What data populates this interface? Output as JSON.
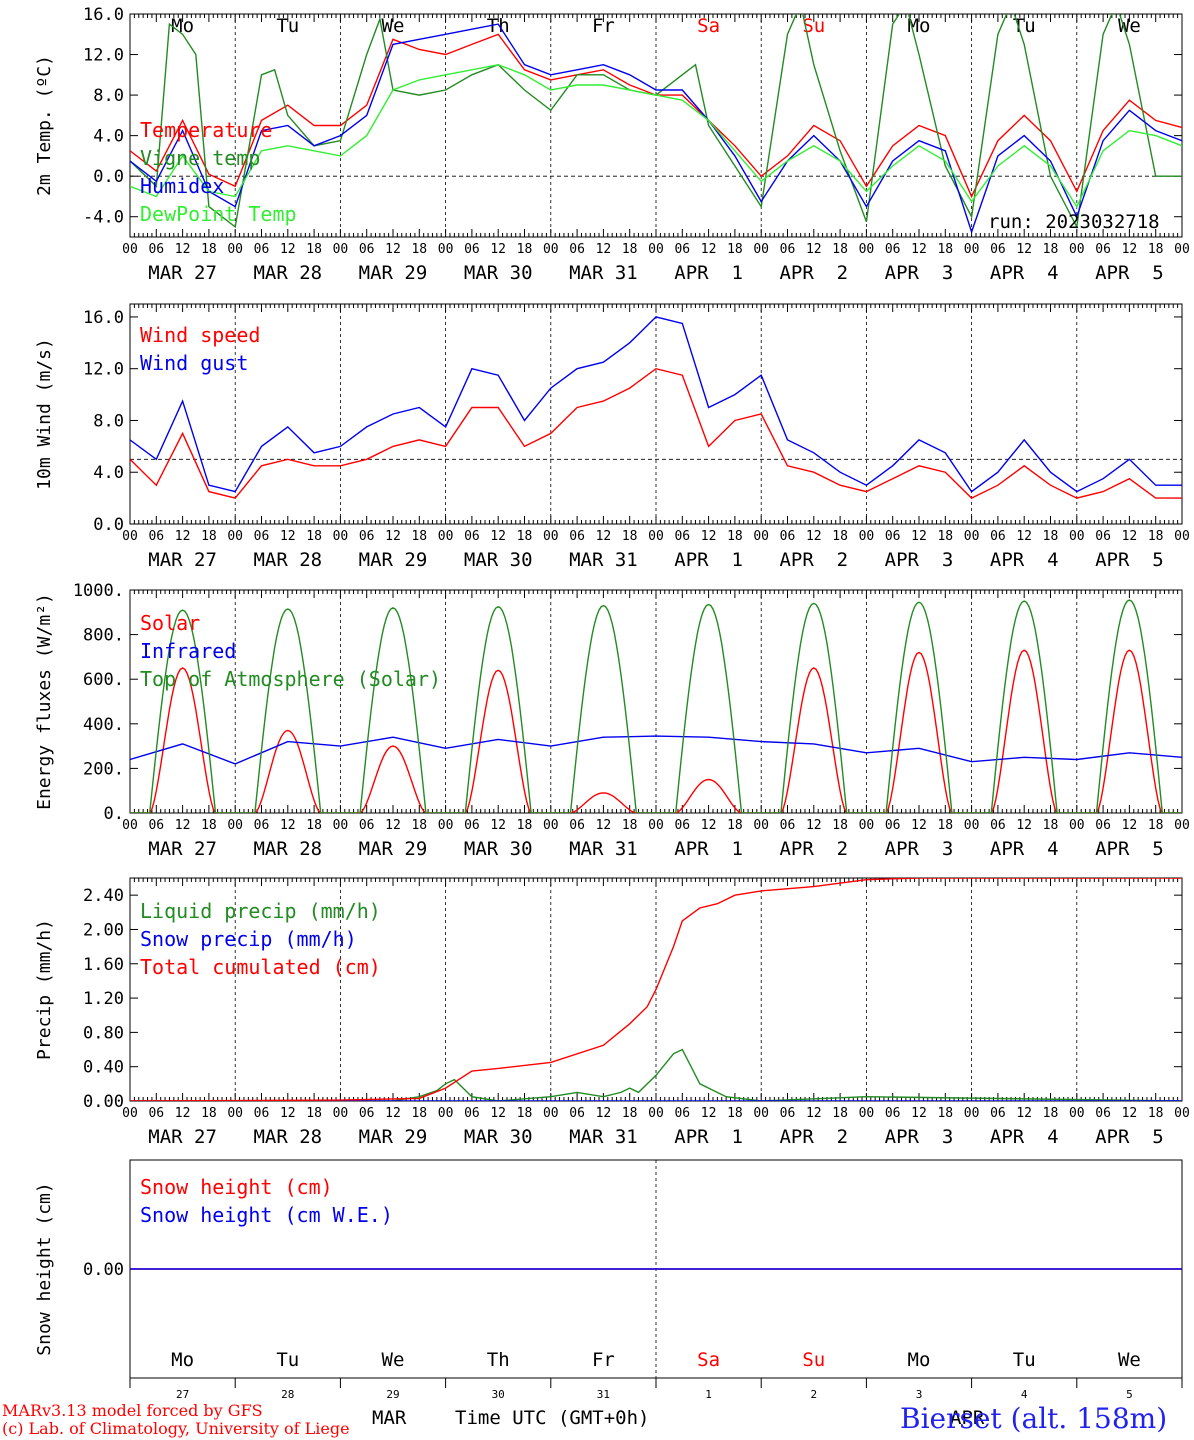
{
  "run_label": "run: 2023032718",
  "station_label": "Bierset (alt. 158m)",
  "credits": [
    "MARv3.13 model forced by GFS",
    "(c) Lab. of Climatology, University of Liege"
  ],
  "time_axis": {
    "hour_ticks": [
      "00",
      "06",
      "12",
      "18"
    ],
    "final_tick": "00",
    "day_labels": [
      "MAR 27",
      "MAR 28",
      "MAR 29",
      "MAR 30",
      "MAR 31",
      "APR  1",
      "APR  2",
      "APR  3",
      "APR  4",
      "APR  5"
    ],
    "weekdays": [
      "Mo",
      "Tu",
      "We",
      "Th",
      "Fr",
      "Sa",
      "Su",
      "Mo",
      "Tu",
      "We"
    ],
    "weekday_colors": [
      "#000000",
      "#000000",
      "#000000",
      "#000000",
      "#000000",
      "#ff0000",
      "#ff0000",
      "#000000",
      "#000000",
      "#000000"
    ],
    "bottom_day_numbers": [
      "27",
      "28",
      "29",
      "30",
      "31",
      "1",
      "2",
      "3",
      "4",
      "5"
    ],
    "bottom_title": "Time UTC (GMT+0h)",
    "bottom_month_labels": [
      "MAR",
      "APR"
    ]
  },
  "chart_data": [
    {
      "type": "line",
      "id": "temperature",
      "ylabel": "2m Temp. (ºC)",
      "ylim": [
        -6,
        16
      ],
      "yticks": [
        "16.0",
        "12.0",
        "8.0",
        "4.0",
        "0.0",
        "-4.0"
      ],
      "reference_line": 0,
      "x_unit": "hours since MAR 27 00 UTC",
      "series": [
        {
          "name": "Temperature",
          "color": "#ff0000",
          "x": [
            0,
            6,
            12,
            18,
            24,
            30,
            36,
            42,
            48,
            54,
            60,
            66,
            72,
            78,
            84,
            90,
            96,
            102,
            108,
            114,
            120,
            126,
            132,
            138,
            144,
            150,
            156,
            162,
            168,
            174,
            180,
            186,
            192,
            198,
            204,
            210,
            216,
            222,
            228,
            234,
            240
          ],
          "y": [
            2.5,
            0.5,
            5.5,
            0.2,
            -1.0,
            5.5,
            7.0,
            5.0,
            5.0,
            7.0,
            13.5,
            12.5,
            12.0,
            13.0,
            14.0,
            10.5,
            9.5,
            10.0,
            10.5,
            9.0,
            8.0,
            8.0,
            5.5,
            3.0,
            0.0,
            2.0,
            5.0,
            3.5,
            -1.0,
            3.0,
            5.0,
            4.0,
            -2.0,
            3.5,
            6.0,
            3.5,
            -1.5,
            4.5,
            7.5,
            5.5,
            4.8
          ]
        },
        {
          "name": "Vigne temp",
          "color": "#228b22",
          "x": [
            0,
            6,
            9,
            12,
            15,
            18,
            24,
            30,
            33,
            36,
            42,
            48,
            54,
            57,
            60,
            66,
            72,
            78,
            84,
            90,
            96,
            102,
            108,
            114,
            120,
            126,
            129,
            132,
            138,
            144,
            150,
            153,
            156,
            162,
            168,
            174,
            177,
            180,
            186,
            192,
            198,
            201,
            204,
            210,
            216,
            222,
            225,
            228,
            234,
            240
          ],
          "y": [
            1.5,
            -1.0,
            15.0,
            14.0,
            12.0,
            -3.0,
            -5.0,
            10.0,
            10.5,
            6.0,
            3.0,
            3.5,
            12.0,
            15.5,
            8.5,
            8.0,
            8.5,
            10.0,
            11.0,
            8.5,
            6.5,
            10.0,
            10.0,
            8.5,
            8.0,
            10.0,
            11.0,
            5.0,
            1.0,
            -3.0,
            14.0,
            17.0,
            11.0,
            2.5,
            -4.5,
            15.0,
            17.0,
            12.0,
            1.0,
            -4.0,
            14.0,
            17.0,
            13.0,
            0.0,
            -5.0,
            14.0,
            17.0,
            13.0,
            0.0,
            0.0
          ]
        },
        {
          "name": "Humidex",
          "color": "#0000ee",
          "x": [
            0,
            6,
            12,
            18,
            24,
            30,
            36,
            42,
            48,
            54,
            60,
            66,
            72,
            78,
            84,
            90,
            96,
            102,
            108,
            114,
            120,
            126,
            132,
            138,
            144,
            150,
            156,
            162,
            168,
            174,
            180,
            186,
            192,
            198,
            204,
            210,
            216,
            222,
            228,
            234,
            240
          ],
          "y": [
            1.5,
            -0.5,
            4.5,
            -1.5,
            -3.0,
            4.5,
            5.0,
            3.0,
            4.0,
            6.0,
            13.0,
            13.5,
            14.0,
            14.5,
            15.0,
            11.0,
            10.0,
            10.5,
            11.0,
            10.0,
            8.5,
            8.5,
            5.5,
            2.0,
            -2.5,
            1.5,
            4.0,
            1.5,
            -3.0,
            1.5,
            3.5,
            2.5,
            -5.5,
            2.0,
            4.0,
            1.5,
            -4.0,
            3.5,
            6.5,
            4.5,
            3.5
          ]
        },
        {
          "name": "DewPoint Temp",
          "color": "#33ee33",
          "x": [
            0,
            6,
            12,
            18,
            24,
            30,
            36,
            42,
            48,
            54,
            60,
            66,
            72,
            78,
            84,
            90,
            96,
            102,
            108,
            114,
            120,
            126,
            132,
            138,
            144,
            150,
            156,
            162,
            168,
            174,
            180,
            186,
            192,
            198,
            204,
            210,
            216,
            222,
            228,
            234,
            240
          ],
          "y": [
            -1.0,
            -2.0,
            2.0,
            -1.5,
            -2.0,
            2.5,
            3.0,
            2.5,
            2.0,
            4.0,
            8.5,
            9.5,
            10.0,
            10.5,
            11.0,
            10.0,
            8.5,
            9.0,
            9.0,
            8.5,
            8.0,
            7.5,
            5.5,
            2.5,
            -0.5,
            1.5,
            3.0,
            1.5,
            -1.5,
            1.0,
            3.0,
            1.5,
            -2.5,
            1.0,
            3.0,
            1.0,
            -3.0,
            2.5,
            4.5,
            4.0,
            3.0
          ]
        }
      ]
    },
    {
      "type": "line",
      "id": "wind",
      "ylabel": "10m Wind (m/s)",
      "ylim": [
        0,
        17
      ],
      "yticks": [
        "16.0",
        "12.0",
        "8.0",
        "4.0",
        "0.0"
      ],
      "reference_line": 5,
      "series": [
        {
          "name": "Wind speed",
          "color": "#ff0000",
          "x": [
            0,
            6,
            12,
            18,
            24,
            30,
            36,
            42,
            48,
            54,
            60,
            66,
            72,
            78,
            84,
            90,
            96,
            102,
            108,
            114,
            120,
            126,
            132,
            138,
            144,
            150,
            156,
            162,
            168,
            174,
            180,
            186,
            192,
            198,
            204,
            210,
            216,
            222,
            228,
            234,
            240
          ],
          "y": [
            5.0,
            3.0,
            7.0,
            2.5,
            2.0,
            4.5,
            5.0,
            4.5,
            4.5,
            5.0,
            6.0,
            6.5,
            6.0,
            9.0,
            9.0,
            6.0,
            7.0,
            9.0,
            9.5,
            10.5,
            12.0,
            11.5,
            6.0,
            8.0,
            8.5,
            4.5,
            4.0,
            3.0,
            2.5,
            3.5,
            4.5,
            4.0,
            2.0,
            3.0,
            4.5,
            3.0,
            2.0,
            2.5,
            3.5,
            2.0,
            2.0
          ]
        },
        {
          "name": "Wind gust",
          "color": "#0000ee",
          "x": [
            0,
            6,
            12,
            18,
            24,
            30,
            36,
            42,
            48,
            54,
            60,
            66,
            72,
            78,
            84,
            90,
            96,
            102,
            108,
            114,
            120,
            126,
            132,
            138,
            144,
            150,
            156,
            162,
            168,
            174,
            180,
            186,
            192,
            198,
            204,
            210,
            216,
            222,
            228,
            234,
            240
          ],
          "y": [
            6.5,
            5.0,
            9.5,
            3.0,
            2.5,
            6.0,
            7.5,
            5.5,
            6.0,
            7.5,
            8.5,
            9.0,
            7.5,
            12.0,
            11.5,
            8.0,
            10.5,
            12.0,
            12.5,
            14.0,
            16.0,
            15.5,
            9.0,
            10.0,
            11.5,
            6.5,
            5.5,
            4.0,
            3.0,
            4.5,
            6.5,
            5.5,
            2.5,
            4.0,
            6.5,
            4.0,
            2.5,
            3.5,
            5.0,
            3.0,
            3.0
          ]
        }
      ]
    },
    {
      "type": "line",
      "id": "energy",
      "ylabel": "Energy fluxes (W/m²)",
      "ylim": [
        0,
        1000
      ],
      "yticks": [
        "1000.",
        "800.",
        "600.",
        "400.",
        "200.",
        "0."
      ],
      "series": [
        {
          "name": "Solar",
          "color": "#ff0000",
          "daily_peaks": [
            650,
            370,
            300,
            640,
            90,
            150,
            650,
            720,
            730,
            730
          ]
        },
        {
          "name": "Infrared",
          "color": "#0000ee",
          "x": [
            0,
            12,
            24,
            36,
            48,
            60,
            72,
            84,
            96,
            108,
            120,
            132,
            144,
            156,
            168,
            180,
            192,
            204,
            216,
            228,
            240
          ],
          "y": [
            240,
            310,
            220,
            320,
            300,
            340,
            290,
            330,
            300,
            340,
            345,
            340,
            320,
            310,
            270,
            290,
            230,
            250,
            240,
            270,
            250
          ]
        },
        {
          "name": "Top of Atmosphere (Solar)",
          "color": "#228b22",
          "daily_peaks": [
            910,
            915,
            920,
            925,
            930,
            935,
            940,
            945,
            950,
            955
          ]
        }
      ]
    },
    {
      "type": "line",
      "id": "precip",
      "ylabel": "Precip (mm/h)",
      "ylim": [
        0,
        2.6
      ],
      "yticks": [
        "2.40",
        "2.00",
        "1.60",
        "1.20",
        "0.80",
        "0.40",
        "0.00"
      ],
      "series": [
        {
          "name": "Liquid precip (mm/h)",
          "color": "#228b22",
          "x": [
            0,
            60,
            66,
            70,
            72,
            74,
            76,
            78,
            84,
            96,
            102,
            108,
            112,
            114,
            116,
            120,
            124,
            126,
            128,
            130,
            132,
            136,
            144,
            168,
            240
          ],
          "y": [
            0,
            0,
            0.05,
            0.12,
            0.2,
            0.25,
            0.15,
            0.05,
            0,
            0.05,
            0.1,
            0.05,
            0.1,
            0.15,
            0.1,
            0.3,
            0.55,
            0.6,
            0.4,
            0.2,
            0.15,
            0.05,
            0,
            0.05,
            0
          ]
        },
        {
          "name": "Snow precip (mm/h)",
          "color": "#0000ee",
          "x": [
            0,
            240
          ],
          "y": [
            0,
            0
          ]
        },
        {
          "name": "Total cumulated (cm)",
          "color": "#ff0000",
          "x": [
            0,
            24,
            48,
            66,
            72,
            78,
            84,
            96,
            108,
            114,
            118,
            120,
            124,
            126,
            130,
            134,
            138,
            144,
            156,
            168,
            180,
            192,
            240
          ],
          "y": [
            0,
            0.005,
            0.01,
            0.03,
            0.15,
            0.35,
            0.38,
            0.45,
            0.65,
            0.9,
            1.1,
            1.3,
            1.8,
            2.1,
            2.25,
            2.3,
            2.4,
            2.45,
            2.5,
            2.58,
            2.6,
            2.6,
            2.6
          ]
        }
      ]
    },
    {
      "type": "line",
      "id": "snow",
      "ylabel": "Snow height (cm)",
      "ylim": [
        -1,
        1
      ],
      "yticks": [
        "0.00"
      ],
      "series": [
        {
          "name": "Snow height (cm)",
          "color": "#ff0000",
          "x": [
            0,
            240
          ],
          "y": [
            0,
            0
          ]
        },
        {
          "name": "Snow height (cm W.E.)",
          "color": "#0000ee",
          "x": [
            0,
            240
          ],
          "y": [
            0,
            0
          ]
        }
      ]
    }
  ]
}
